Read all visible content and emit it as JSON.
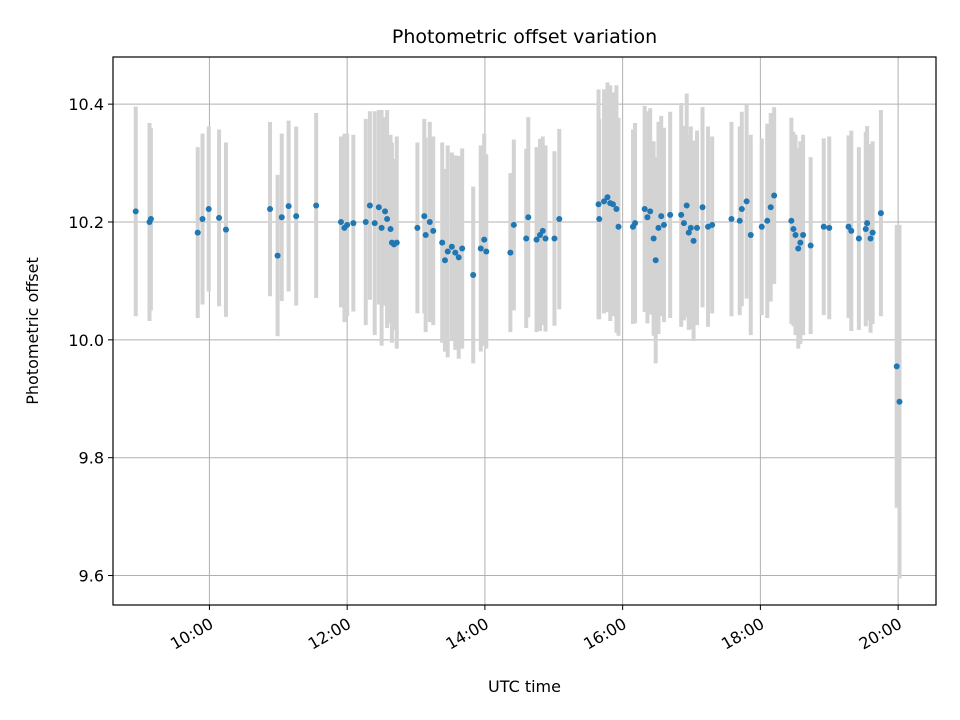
{
  "chart_data": {
    "type": "scatter",
    "title": "Photometric offset variation",
    "xlabel": "UTC time",
    "ylabel": "Photometric offset",
    "x_unit": "hours UTC",
    "xlim": [
      8.6,
      20.55
    ],
    "ylim": [
      9.55,
      10.48
    ],
    "x_ticks": [
      10,
      12,
      14,
      16,
      18,
      20
    ],
    "x_tick_labels": [
      "10:00",
      "12:00",
      "14:00",
      "16:00",
      "18:00",
      "20:00"
    ],
    "y_ticks": [
      9.6,
      9.8,
      10.0,
      10.2,
      10.4
    ],
    "y_tick_labels": [
      "9.6",
      "9.8",
      "10.0",
      "10.2",
      "10.4"
    ],
    "grid": true,
    "x_tick_rotation": "30 degrees",
    "point_color": "#1f77b4",
    "errorbar_color": "#d3d3d3",
    "points": [
      {
        "x": 8.93,
        "y": 10.218,
        "err": 0.178
      },
      {
        "x": 9.13,
        "y": 10.2,
        "err": 0.168
      },
      {
        "x": 9.15,
        "y": 10.205,
        "err": 0.155
      },
      {
        "x": 9.83,
        "y": 10.182,
        "err": 0.145
      },
      {
        "x": 9.9,
        "y": 10.205,
        "err": 0.145
      },
      {
        "x": 9.99,
        "y": 10.222,
        "err": 0.14
      },
      {
        "x": 10.14,
        "y": 10.207,
        "err": 0.15
      },
      {
        "x": 10.24,
        "y": 10.187,
        "err": 0.148
      },
      {
        "x": 10.88,
        "y": 10.222,
        "err": 0.148
      },
      {
        "x": 10.99,
        "y": 10.143,
        "err": 0.137
      },
      {
        "x": 11.05,
        "y": 10.208,
        "err": 0.142
      },
      {
        "x": 11.15,
        "y": 10.227,
        "err": 0.145
      },
      {
        "x": 11.26,
        "y": 10.21,
        "err": 0.152
      },
      {
        "x": 11.55,
        "y": 10.228,
        "err": 0.157
      },
      {
        "x": 11.91,
        "y": 10.2,
        "err": 0.145
      },
      {
        "x": 11.96,
        "y": 10.19,
        "err": 0.16
      },
      {
        "x": 12.0,
        "y": 10.195,
        "err": 0.155
      },
      {
        "x": 12.09,
        "y": 10.198,
        "err": 0.15
      },
      {
        "x": 12.27,
        "y": 10.2,
        "err": 0.175
      },
      {
        "x": 12.33,
        "y": 10.228,
        "err": 0.16
      },
      {
        "x": 12.4,
        "y": 10.198,
        "err": 0.19
      },
      {
        "x": 12.46,
        "y": 10.225,
        "err": 0.165
      },
      {
        "x": 12.5,
        "y": 10.19,
        "err": 0.2
      },
      {
        "x": 12.55,
        "y": 10.218,
        "err": 0.16
      },
      {
        "x": 12.58,
        "y": 10.205,
        "err": 0.185
      },
      {
        "x": 12.63,
        "y": 10.188,
        "err": 0.16
      },
      {
        "x": 12.65,
        "y": 10.165,
        "err": 0.17
      },
      {
        "x": 12.68,
        "y": 10.162,
        "err": 0.145
      },
      {
        "x": 12.72,
        "y": 10.165,
        "err": 0.18
      },
      {
        "x": 13.02,
        "y": 10.19,
        "err": 0.145
      },
      {
        "x": 13.12,
        "y": 10.21,
        "err": 0.165
      },
      {
        "x": 13.14,
        "y": 10.178,
        "err": 0.165
      },
      {
        "x": 13.2,
        "y": 10.2,
        "err": 0.17
      },
      {
        "x": 13.25,
        "y": 10.185,
        "err": 0.16
      },
      {
        "x": 13.38,
        "y": 10.165,
        "err": 0.17
      },
      {
        "x": 13.42,
        "y": 10.135,
        "err": 0.155
      },
      {
        "x": 13.46,
        "y": 10.15,
        "err": 0.18
      },
      {
        "x": 13.52,
        "y": 10.158,
        "err": 0.16
      },
      {
        "x": 13.57,
        "y": 10.148,
        "err": 0.165
      },
      {
        "x": 13.62,
        "y": 10.14,
        "err": 0.172
      },
      {
        "x": 13.67,
        "y": 10.155,
        "err": 0.17
      },
      {
        "x": 13.83,
        "y": 10.11,
        "err": 0.15
      },
      {
        "x": 13.94,
        "y": 10.155,
        "err": 0.175
      },
      {
        "x": 13.99,
        "y": 10.17,
        "err": 0.18
      },
      {
        "x": 14.02,
        "y": 10.15,
        "err": 0.165
      },
      {
        "x": 14.37,
        "y": 10.148,
        "err": 0.135
      },
      {
        "x": 14.42,
        "y": 10.195,
        "err": 0.145
      },
      {
        "x": 14.6,
        "y": 10.172,
        "err": 0.152
      },
      {
        "x": 14.63,
        "y": 10.208,
        "err": 0.17
      },
      {
        "x": 14.75,
        "y": 10.17,
        "err": 0.157
      },
      {
        "x": 14.8,
        "y": 10.178,
        "err": 0.163
      },
      {
        "x": 14.84,
        "y": 10.185,
        "err": 0.16
      },
      {
        "x": 14.88,
        "y": 10.172,
        "err": 0.158
      },
      {
        "x": 15.01,
        "y": 10.172,
        "err": 0.148
      },
      {
        "x": 15.08,
        "y": 10.205,
        "err": 0.153
      },
      {
        "x": 15.65,
        "y": 10.23,
        "err": 0.195
      },
      {
        "x": 15.66,
        "y": 10.205,
        "err": 0.17
      },
      {
        "x": 15.73,
        "y": 10.235,
        "err": 0.19
      },
      {
        "x": 15.78,
        "y": 10.242,
        "err": 0.195
      },
      {
        "x": 15.82,
        "y": 10.232,
        "err": 0.2
      },
      {
        "x": 15.86,
        "y": 10.23,
        "err": 0.19
      },
      {
        "x": 15.91,
        "y": 10.222,
        "err": 0.21
      },
      {
        "x": 15.94,
        "y": 10.192,
        "err": 0.185
      },
      {
        "x": 16.15,
        "y": 10.192,
        "err": 0.165
      },
      {
        "x": 16.18,
        "y": 10.198,
        "err": 0.17
      },
      {
        "x": 16.32,
        "y": 10.222,
        "err": 0.175
      },
      {
        "x": 16.36,
        "y": 10.208,
        "err": 0.18
      },
      {
        "x": 16.4,
        "y": 10.218,
        "err": 0.175
      },
      {
        "x": 16.45,
        "y": 10.172,
        "err": 0.165
      },
      {
        "x": 16.48,
        "y": 10.135,
        "err": 0.175
      },
      {
        "x": 16.52,
        "y": 10.19,
        "err": 0.18
      },
      {
        "x": 16.56,
        "y": 10.21,
        "err": 0.17
      },
      {
        "x": 16.6,
        "y": 10.195,
        "err": 0.165
      },
      {
        "x": 16.69,
        "y": 10.212,
        "err": 0.175
      },
      {
        "x": 16.85,
        "y": 10.212,
        "err": 0.19
      },
      {
        "x": 16.89,
        "y": 10.198,
        "err": 0.165
      },
      {
        "x": 16.93,
        "y": 10.228,
        "err": 0.19
      },
      {
        "x": 16.96,
        "y": 10.182,
        "err": 0.165
      },
      {
        "x": 16.99,
        "y": 10.19,
        "err": 0.172
      },
      {
        "x": 17.03,
        "y": 10.168,
        "err": 0.17
      },
      {
        "x": 17.08,
        "y": 10.19,
        "err": 0.165
      },
      {
        "x": 17.16,
        "y": 10.225,
        "err": 0.17
      },
      {
        "x": 17.24,
        "y": 10.192,
        "err": 0.17
      },
      {
        "x": 17.3,
        "y": 10.195,
        "err": 0.15
      },
      {
        "x": 17.58,
        "y": 10.205,
        "err": 0.165
      },
      {
        "x": 17.7,
        "y": 10.202,
        "err": 0.16
      },
      {
        "x": 17.73,
        "y": 10.222,
        "err": 0.165
      },
      {
        "x": 17.8,
        "y": 10.235,
        "err": 0.165
      },
      {
        "x": 17.86,
        "y": 10.178,
        "err": 0.17
      },
      {
        "x": 18.02,
        "y": 10.192,
        "err": 0.15
      },
      {
        "x": 18.1,
        "y": 10.202,
        "err": 0.165
      },
      {
        "x": 18.15,
        "y": 10.225,
        "err": 0.16
      },
      {
        "x": 18.2,
        "y": 10.245,
        "err": 0.15
      },
      {
        "x": 18.45,
        "y": 10.202,
        "err": 0.175
      },
      {
        "x": 18.48,
        "y": 10.188,
        "err": 0.165
      },
      {
        "x": 18.51,
        "y": 10.178,
        "err": 0.17
      },
      {
        "x": 18.55,
        "y": 10.155,
        "err": 0.17
      },
      {
        "x": 18.58,
        "y": 10.165,
        "err": 0.172
      },
      {
        "x": 18.62,
        "y": 10.178,
        "err": 0.17
      },
      {
        "x": 18.73,
        "y": 10.16,
        "err": 0.15
      },
      {
        "x": 18.92,
        "y": 10.192,
        "err": 0.15
      },
      {
        "x": 19.0,
        "y": 10.19,
        "err": 0.155
      },
      {
        "x": 19.28,
        "y": 10.192,
        "err": 0.155
      },
      {
        "x": 19.32,
        "y": 10.185,
        "err": 0.17
      },
      {
        "x": 19.43,
        "y": 10.172,
        "err": 0.155
      },
      {
        "x": 19.53,
        "y": 10.188,
        "err": 0.165
      },
      {
        "x": 19.55,
        "y": 10.198,
        "err": 0.165
      },
      {
        "x": 19.6,
        "y": 10.172,
        "err": 0.16
      },
      {
        "x": 19.63,
        "y": 10.182,
        "err": 0.155
      },
      {
        "x": 19.75,
        "y": 10.215,
        "err": 0.175
      },
      {
        "x": 19.98,
        "y": 9.955,
        "err": 0.24
      },
      {
        "x": 20.02,
        "y": 9.895,
        "err": 0.3
      }
    ]
  }
}
